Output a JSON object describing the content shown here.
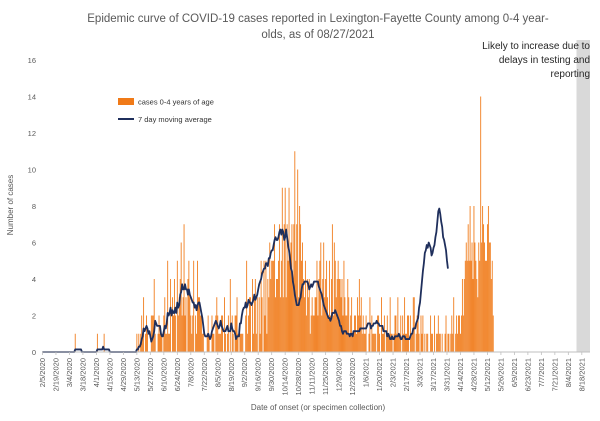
{
  "chart_data": {
    "type": "bar",
    "title": [
      "Epidemic curve of COVID-19 cases reported in Lexington-Fayette County among 0-4 year-",
      "olds, as of 08/27/2021"
    ],
    "xlabel": "Date of onset (or specimen collection)",
    "ylabel": "Number of cases",
    "ylim": [
      0,
      16
    ],
    "yticks": [
      0,
      2,
      4,
      6,
      8,
      10,
      12,
      14,
      16
    ],
    "grid": false,
    "legend_position": "upper-left",
    "bar_color": "#f07a18",
    "line_color": "#1f2f5c",
    "shade_color": "#d9d9d9",
    "x_start": "2020-02-05",
    "x_end": "2021-08-26",
    "x_tick_labels": [
      "2/5/2020",
      "2/19/2020",
      "3/4/2020",
      "3/18/2020",
      "4/1/2020",
      "4/15/2020",
      "4/29/2020",
      "5/13/2020",
      "5/27/2020",
      "6/10/2020",
      "6/24/2020",
      "7/8/2020",
      "7/22/2020",
      "8/5/2020",
      "8/19/2020",
      "9/2/2020",
      "9/16/2020",
      "9/30/2020",
      "10/14/2020",
      "10/28/2020",
      "11/11/2020",
      "11/25/2020",
      "12/9/2020",
      "12/23/2020",
      "1/6/2021",
      "1/20/2021",
      "2/3/2021",
      "2/17/2021",
      "3/3/2021",
      "3/17/2021",
      "3/31/2021",
      "4/14/2021",
      "4/28/2021",
      "5/12/2021",
      "5/26/2021",
      "6/9/2021",
      "6/23/2021",
      "7/7/2021",
      "7/21/2021",
      "8/4/2021",
      "8/18/2021"
    ],
    "series": [
      {
        "name": "cases 0-4 years of age",
        "kind": "bar",
        "x_start_date": "2020-02-05",
        "values": [
          0,
          0,
          0,
          0,
          0,
          0,
          0,
          0,
          0,
          0,
          0,
          0,
          0,
          0,
          0,
          0,
          0,
          0,
          0,
          0,
          0,
          0,
          0,
          0,
          0,
          0,
          0,
          0,
          0,
          0,
          0,
          0,
          0,
          0,
          1,
          0,
          0,
          0,
          0,
          0,
          0,
          0,
          0,
          0,
          0,
          0,
          0,
          0,
          0,
          0,
          0,
          0,
          0,
          0,
          0,
          0,
          0,
          1,
          0,
          0,
          0,
          0,
          0,
          0,
          1,
          0,
          0,
          0,
          0,
          0,
          0,
          0,
          0,
          0,
          0,
          0,
          0,
          0,
          0,
          0,
          0,
          0,
          0,
          0,
          0,
          0,
          0,
          0,
          0,
          0,
          0,
          0,
          0,
          0,
          0,
          0,
          0,
          0,
          1,
          0,
          1,
          0,
          1,
          2,
          1,
          3,
          0,
          1,
          2,
          1,
          0,
          0,
          0,
          2,
          2,
          2,
          4,
          1,
          0,
          0,
          1,
          2,
          1,
          1,
          1,
          0,
          2,
          3,
          1,
          1,
          5,
          1,
          1,
          4,
          0,
          3,
          2,
          4,
          2,
          0,
          5,
          2,
          3,
          4,
          6,
          2,
          3,
          7,
          2,
          3,
          0,
          4,
          5,
          3,
          2,
          1,
          2,
          5,
          0,
          2,
          1,
          5,
          3,
          3,
          2,
          2,
          1,
          1,
          0,
          0,
          0,
          1,
          2,
          1,
          0,
          0,
          2,
          1,
          1,
          0,
          2,
          3,
          2,
          1,
          1,
          1,
          2,
          2,
          0,
          3,
          1,
          0,
          1,
          2,
          0,
          4,
          0,
          2,
          1,
          0,
          2,
          2,
          3,
          1,
          0,
          1,
          1,
          1,
          1,
          0,
          0,
          2,
          5,
          1,
          2,
          3,
          3,
          0,
          4,
          1,
          3,
          4,
          1,
          3,
          0,
          3,
          1,
          5,
          3,
          0,
          5,
          2,
          5,
          1,
          4,
          3,
          6,
          4,
          5,
          5,
          5,
          7,
          3,
          4,
          4,
          5,
          7,
          3,
          5,
          9,
          3,
          7,
          9,
          3,
          7,
          5,
          9,
          5,
          6,
          7,
          4,
          7,
          11,
          5,
          7,
          10,
          3,
          8,
          7,
          5,
          6,
          4,
          3,
          5,
          2,
          4,
          3,
          4,
          1,
          2,
          3,
          2,
          2,
          3,
          3,
          5,
          2,
          4,
          5,
          6,
          2,
          4,
          6,
          3,
          4,
          5,
          3,
          2,
          5,
          2,
          4,
          7,
          2,
          6,
          5,
          3,
          4,
          5,
          4,
          4,
          3,
          4,
          2,
          5,
          3,
          2,
          2,
          4,
          3,
          1,
          2,
          3,
          1,
          1,
          2,
          2,
          1,
          3,
          2,
          4,
          2,
          3,
          1,
          2,
          1,
          1,
          2,
          0,
          0,
          1,
          3,
          0,
          2,
          1,
          1,
          1,
          1,
          0,
          2,
          2,
          1,
          0,
          3,
          1,
          1,
          2,
          0,
          1,
          2,
          1,
          1,
          3,
          1,
          1,
          0,
          1,
          2,
          2,
          1,
          3,
          1,
          1,
          2,
          0,
          2,
          1,
          3,
          1,
          1,
          2,
          2,
          0,
          2,
          1,
          1,
          3,
          3,
          0,
          1,
          2,
          2,
          1,
          0,
          2,
          1,
          2,
          0,
          1,
          0,
          1,
          1,
          0,
          0,
          2,
          1,
          1,
          0,
          2,
          0,
          1,
          1,
          2,
          1,
          1,
          0,
          1,
          0,
          0,
          1,
          2,
          0,
          1,
          1,
          0,
          1,
          2,
          1,
          3,
          0,
          1,
          2,
          1,
          2,
          2,
          1,
          2,
          4,
          2,
          4,
          5,
          6,
          5,
          7,
          5,
          8,
          5,
          6,
          4,
          8,
          6,
          5,
          4,
          3,
          6,
          5,
          14,
          6,
          8,
          7,
          6,
          5,
          5,
          7,
          8,
          6,
          6,
          4,
          5,
          2
        ]
      },
      {
        "name": "7 day moving average",
        "kind": "line",
        "x_start_date": "2020-02-05",
        "values": [
          0,
          0,
          0,
          0,
          0,
          0,
          0,
          0,
          0,
          0,
          0,
          0,
          0,
          0,
          0,
          0,
          0,
          0,
          0,
          0,
          0,
          0,
          0,
          0,
          0,
          0,
          0,
          0,
          0,
          0,
          0,
          0,
          0,
          0,
          0.14,
          0.14,
          0.14,
          0.14,
          0.14,
          0.14,
          0.14,
          0,
          0,
          0,
          0,
          0,
          0,
          0,
          0,
          0,
          0,
          0,
          0,
          0,
          0,
          0,
          0,
          0.14,
          0.14,
          0.14,
          0.14,
          0.14,
          0.14,
          0.29,
          0.14,
          0.14,
          0.14,
          0.14,
          0.14,
          0.14,
          0,
          0,
          0,
          0,
          0,
          0,
          0,
          0,
          0,
          0,
          0,
          0,
          0,
          0,
          0,
          0,
          0,
          0,
          0,
          0,
          0,
          0,
          0,
          0,
          0,
          0,
          0,
          0,
          0.14,
          0.14,
          0.29,
          0.29,
          0.43,
          0.71,
          0.86,
          1.29,
          1.14,
          1.29,
          1.43,
          1.29,
          1,
          1.14,
          0.86,
          0.57,
          0.71,
          0.86,
          1.14,
          1.71,
          1.57,
          1.43,
          1.43,
          1.43,
          1.43,
          1,
          0.86,
          0.86,
          1.14,
          1.43,
          1.29,
          1.57,
          2.14,
          2,
          2.14,
          2.43,
          2,
          2.29,
          2.14,
          2.14,
          2.43,
          2.14,
          2.71,
          2.43,
          2.57,
          3.14,
          3.29,
          3.71,
          3.43,
          3.43,
          3.71,
          3.43,
          3.43,
          3.14,
          3.43,
          3.14,
          3,
          2.86,
          2.71,
          2.71,
          2.43,
          2.57,
          2.29,
          2.57,
          2.71,
          2.71,
          2.43,
          2.14,
          1.86,
          1.43,
          1,
          0.86,
          0.86,
          0.86,
          1,
          0.86,
          0.71,
          0.86,
          1.14,
          1.29,
          1.43,
          1.57,
          1.71,
          1.57,
          1.43,
          1.29,
          1.43,
          1.71,
          1.43,
          1.29,
          1.14,
          1.14,
          1.14,
          1.29,
          1.43,
          1.14,
          1.14,
          1.14,
          1.57,
          1.29,
          1.14,
          1.14,
          1,
          0.71,
          0.86,
          0.86,
          0.86,
          1.57,
          1.57,
          2,
          2.29,
          2.43,
          2.43,
          2.71,
          2.43,
          2.57,
          2.86,
          2.71,
          2.71,
          2.57,
          2.71,
          2.86,
          3.14,
          2.86,
          3,
          3.14,
          3.43,
          3.71,
          3.86,
          4,
          4.29,
          4.43,
          4.57,
          4.57,
          4.86,
          4.86,
          4.71,
          5.14,
          5.14,
          5.43,
          5.57,
          5.57,
          5.86,
          6.14,
          6.29,
          6.14,
          6.14,
          6.29,
          6.57,
          6.71,
          6.43,
          6.71,
          6.57,
          6.14,
          6.29,
          6.71,
          6.29,
          5.86,
          5.57,
          5.14,
          4.57,
          4.43,
          3.86,
          3.57,
          3.14,
          2.86,
          2.57,
          2.57,
          2.57,
          2.86,
          3,
          3.43,
          3.71,
          3.71,
          3.86,
          3.86,
          3.86,
          3.86,
          3.71,
          3.43,
          3.57,
          3.71,
          3.57,
          3.71,
          3.86,
          3.86,
          3.86,
          3.86,
          3.86,
          3.57,
          3.43,
          3.29,
          3.14,
          2.86,
          2.57,
          2.43,
          2.29,
          2.14,
          2,
          1.86,
          1.86,
          1.71,
          1.86,
          2.14,
          2.14,
          2.14,
          2.29,
          2.14,
          2,
          1.86,
          1.71,
          1.43,
          1.43,
          1.14,
          1,
          1.14,
          1.14,
          1.14,
          1,
          1,
          1,
          0.86,
          1,
          1,
          0.86,
          1.14,
          1.14,
          1.14,
          1.14,
          1.14,
          1.14,
          1.14,
          1.29,
          1.29,
          1.29,
          1.29,
          1.29,
          1.29,
          1.29,
          1.43,
          1.57,
          1.57,
          1.57,
          1.29,
          1.43,
          1.43,
          1.57,
          1.57,
          1.57,
          1.71,
          1.57,
          1.57,
          1.43,
          1.43,
          1.43,
          1.43,
          1.14,
          1.14,
          1.14,
          1.14,
          0.86,
          1,
          0.86,
          0.71,
          0.71,
          0.86,
          0.71,
          0.71,
          0.86,
          0.86,
          0.86,
          0.86,
          1,
          0.86,
          0.71,
          0.71,
          0.86,
          0.86,
          0.86,
          0.71,
          0.71,
          0.71,
          0.71,
          0.71,
          0.86,
          1,
          1,
          1.29,
          1.29,
          1.29,
          1.57,
          1.71,
          1.86,
          2.43,
          2.71,
          3.29,
          3.86,
          4.43,
          4.86,
          5.43,
          5.57,
          5.86,
          5.71,
          6,
          5.86,
          5.71,
          5.29,
          5.43,
          5.71,
          5.86,
          6.29,
          6.57,
          7.14,
          7.71,
          7.86,
          7.57,
          7.14,
          6.86,
          6.29,
          6.14,
          5.86,
          5.57,
          5,
          4.57
        ]
      }
    ],
    "annotation": {
      "lines": [
        "Likely to increase due to",
        "delays in testing and",
        "reporting"
      ],
      "shaded_from": "2021-08-13",
      "shaded_to": "2021-08-26"
    }
  }
}
